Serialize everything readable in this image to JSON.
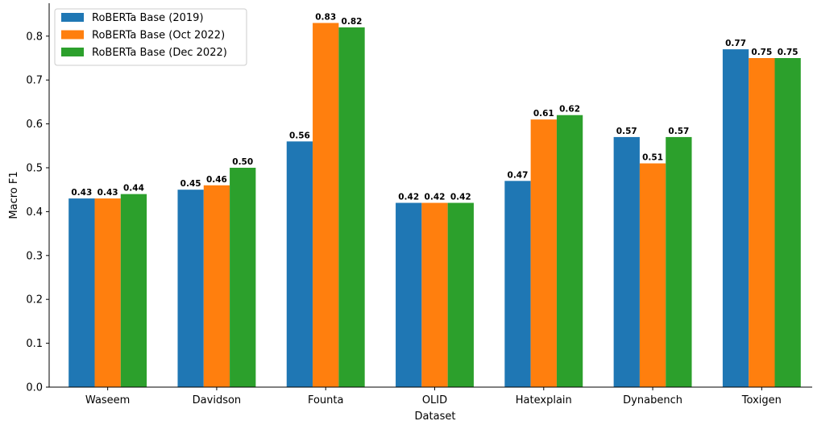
{
  "chart_data": {
    "type": "bar",
    "categories": [
      "Waseem",
      "Davidson",
      "Founta",
      "OLID",
      "Hatexplain",
      "Dynabench",
      "Toxigen"
    ],
    "series": [
      {
        "name": "RoBERTa Base (2019)",
        "color": "#1f77b4",
        "values": [
          0.43,
          0.45,
          0.56,
          0.42,
          0.47,
          0.57,
          0.77
        ],
        "labels": [
          "0.43",
          "0.45",
          "0.56",
          "0.42",
          "0.47",
          "0.57",
          "0.77"
        ]
      },
      {
        "name": "RoBERTa Base (Oct 2022)",
        "color": "#ff7f0e",
        "values": [
          0.43,
          0.46,
          0.83,
          0.42,
          0.61,
          0.51,
          0.75
        ],
        "labels": [
          "0.43",
          "0.46",
          "0.83",
          "0.42",
          "0.61",
          "0.51",
          "0.75"
        ]
      },
      {
        "name": "RoBERTa Base (Dec 2022)",
        "color": "#2ca02c",
        "values": [
          0.44,
          0.5,
          0.82,
          0.42,
          0.62,
          0.57,
          0.75
        ],
        "labels": [
          "0.44",
          "0.50",
          "0.82",
          "0.42",
          "0.62",
          "0.57",
          "0.75"
        ]
      }
    ],
    "xlabel": "Dataset",
    "ylabel": "Macro F1",
    "ylim": [
      0,
      0.875
    ],
    "yticks": [
      0.0,
      0.1,
      0.2,
      0.3,
      0.4,
      0.5,
      0.6,
      0.7,
      0.8
    ],
    "ytick_labels": [
      "0.0",
      "0.1",
      "0.2",
      "0.3",
      "0.4",
      "0.5",
      "0.6",
      "0.7",
      "0.8"
    ],
    "grid": false,
    "legend_position": "top-left"
  }
}
